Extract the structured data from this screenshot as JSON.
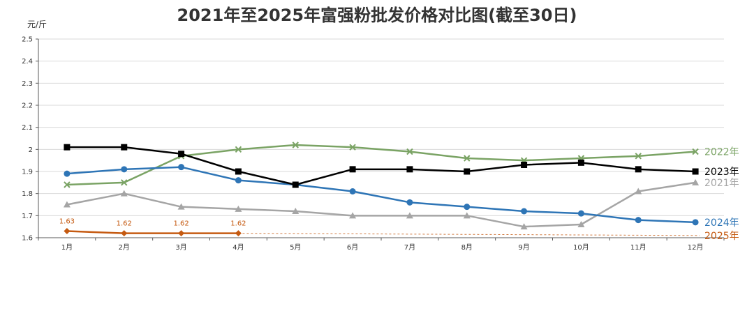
{
  "chart_data": {
    "type": "line",
    "title": "2021年至2025年富强粉批发价格对比图(截至30日)",
    "ylabel": "元/斤",
    "xlabel": "",
    "categories": [
      "1月",
      "2月",
      "3月",
      "4月",
      "5月",
      "6月",
      "7月",
      "8月",
      "9月",
      "10月",
      "11月",
      "12月"
    ],
    "ylim": [
      1.6,
      2.5
    ],
    "yticks": [
      "1.6",
      "1.7",
      "1.8",
      "1.9",
      "2",
      "2.1",
      "2.2",
      "2.3",
      "2.4",
      "2.5"
    ],
    "grid": true,
    "legend": "right-end labels",
    "series": [
      {
        "name": "2022年",
        "color": "#7aa364",
        "marker": "x",
        "values": [
          1.84,
          1.85,
          1.97,
          2.0,
          2.02,
          2.01,
          1.99,
          1.96,
          1.95,
          1.96,
          1.97,
          1.99
        ]
      },
      {
        "name": "2023年",
        "color": "#000000",
        "marker": "square",
        "values": [
          2.01,
          2.01,
          1.98,
          1.9,
          1.84,
          1.91,
          1.91,
          1.9,
          1.93,
          1.94,
          1.91,
          1.9
        ]
      },
      {
        "name": "2021年",
        "color": "#a5a5a5",
        "marker": "triangle",
        "values": [
          1.75,
          1.8,
          1.74,
          1.73,
          1.72,
          1.7,
          1.7,
          1.7,
          1.65,
          1.66,
          1.81,
          1.85
        ]
      },
      {
        "name": "2024年",
        "color": "#2e75b6",
        "marker": "circle",
        "values": [
          1.89,
          1.91,
          1.92,
          1.86,
          1.84,
          1.81,
          1.76,
          1.74,
          1.72,
          1.71,
          1.68,
          1.67
        ]
      },
      {
        "name": "2025年",
        "color": "#c55a11",
        "marker": "diamond",
        "values": [
          1.63,
          1.62,
          1.62,
          1.62,
          null,
          null,
          null,
          null,
          null,
          null,
          null,
          null
        ],
        "data_labels": [
          "1.63",
          "1.62",
          "1.62",
          "1.62"
        ],
        "trend_end": 1.61
      }
    ]
  }
}
